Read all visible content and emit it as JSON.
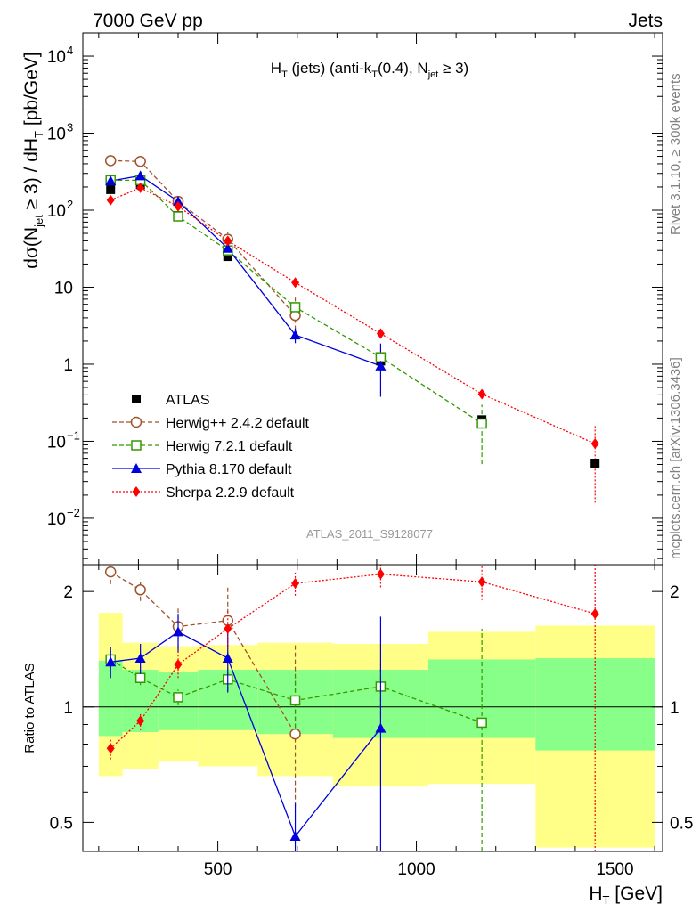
{
  "header": {
    "left": "7000 GeV pp",
    "right": "Jets"
  },
  "side_text": {
    "upper": "Rivet 3.1.10, ≥ 300k events",
    "lower": "mcplots.cern.ch [arXiv:1306.3436]"
  },
  "title": {
    "main": "H",
    "sub_t": "T",
    "mid": " (jets) (anti-k",
    "sub_t2": "T",
    "after": "(0.4), N",
    "sub_jet": "jet",
    "end": " ≥ 3)"
  },
  "ylabel_top": {
    "a": "dσ(N",
    "sub_jet": "jet",
    "b": " ≥ 3) / dH",
    "sub_t": "T",
    "c": " [pb/GeV]"
  },
  "ylabel_ratio": "Ratio to ATLAS",
  "xlabel": {
    "a": "H",
    "sub_t": "T",
    "b": " [GeV]"
  },
  "analysis_id": "ATLAS_2011_S9128077",
  "colors": {
    "atlas": "#000000",
    "herwigpp": "#a0522d",
    "herwig7": "#339900",
    "pythia": "#0000dd",
    "sherpa": "#ff0000",
    "band_outer": "#ffff88",
    "band_inner": "#88ff88"
  },
  "chart_data": {
    "type": "scatter",
    "x_label": "H_T [GeV]",
    "y_label": "dσ(N_jet ≥ 3) / dH_T [pb/GeV]",
    "y_scale": "log",
    "xlim": [
      160,
      1620
    ],
    "ylim_main": [
      0.0025,
      20000
    ],
    "ylim_ratio": [
      0.42,
      2.35
    ],
    "x_ticks": [
      500,
      1000,
      1500
    ],
    "x_tick_labels": [
      "500",
      "1000",
      "1500"
    ],
    "y_ticks_main": [
      0.01,
      0.1,
      1,
      10,
      100,
      1000,
      10000
    ],
    "y_tick_labels_main": [
      {
        "base": "10",
        "exp": "−2"
      },
      {
        "base": "10",
        "exp": "−1"
      },
      {
        "base": "1",
        "exp": ""
      },
      {
        "base": "10",
        "exp": ""
      },
      {
        "base": "10",
        "exp": "2"
      },
      {
        "base": "10",
        "exp": "3"
      },
      {
        "base": "10",
        "exp": "4"
      }
    ],
    "y_ticks_ratio": [
      0.5,
      1,
      2
    ],
    "y_tick_labels_ratio": [
      "0.5",
      "1",
      "2"
    ],
    "legend_position": "bottom-left",
    "bins": [
      {
        "lo": 200,
        "hi": 260
      },
      {
        "lo": 260,
        "hi": 350
      },
      {
        "lo": 350,
        "hi": 450
      },
      {
        "lo": 450,
        "hi": 600
      },
      {
        "lo": 600,
        "hi": 790
      },
      {
        "lo": 790,
        "hi": 1030
      },
      {
        "lo": 1030,
        "hi": 1300
      },
      {
        "lo": 1300,
        "hi": 1600
      }
    ],
    "atlas": {
      "name": "ATLAS",
      "x": [
        230,
        305,
        400,
        525,
        695,
        910,
        1165,
        1450
      ],
      "y": [
        185,
        215,
        85,
        25,
        5.2,
        1.1,
        0.19,
        0.052
      ],
      "band_inner": [
        [
          0.84,
          1.32
        ],
        [
          0.86,
          1.25
        ],
        [
          0.87,
          1.23
        ],
        [
          0.87,
          1.25
        ],
        [
          0.85,
          1.25
        ],
        [
          0.83,
          1.25
        ],
        [
          0.83,
          1.33
        ],
        [
          0.77,
          1.34
        ]
      ],
      "band_outer": [
        [
          0.66,
          1.76
        ],
        [
          0.69,
          1.47
        ],
        [
          0.72,
          1.44
        ],
        [
          0.7,
          1.45
        ],
        [
          0.66,
          1.47
        ],
        [
          0.62,
          1.46
        ],
        [
          0.63,
          1.57
        ],
        [
          0.43,
          1.63
        ]
      ]
    },
    "series": [
      {
        "name": "Herwig++ 2.4.2 default",
        "key": "herwigpp",
        "marker": "open-circle",
        "line": "dashed",
        "x": [
          230,
          305,
          400,
          525,
          695
        ],
        "y": [
          440,
          430,
          130,
          42,
          4.3
        ],
        "ratio": [
          2.25,
          2.02,
          1.62,
          1.68,
          0.85
        ],
        "ratio_err": [
          [
            2.09,
            2.41
          ],
          [
            1.89,
            2.15
          ],
          [
            1.42,
            1.82
          ],
          [
            1.3,
            2.06
          ],
          [
            0.55,
            1.45
          ]
        ]
      },
      {
        "name": "Herwig 7.2.1 default",
        "key": "herwig7",
        "marker": "open-square",
        "line": "dashed",
        "x": [
          230,
          305,
          400,
          525,
          695,
          910,
          1165
        ],
        "y": [
          245,
          245,
          83,
          30,
          5.5,
          1.23,
          0.17
        ],
        "ratio": [
          1.33,
          1.19,
          1.06,
          1.18,
          1.04,
          1.13,
          0.91
        ],
        "ratio_err": [
          [
            1.25,
            1.41
          ],
          [
            1.14,
            1.24
          ],
          [
            1.01,
            1.11
          ],
          [
            1.1,
            1.26
          ],
          [
            0.88,
            1.2
          ],
          [
            0.95,
            1.3
          ],
          [
            0.27,
            1.6
          ]
        ]
      },
      {
        "name": "Pythia 8.170 default",
        "key": "pythia",
        "marker": "filled-triangle",
        "line": "solid",
        "x": [
          230,
          305,
          400,
          525,
          695,
          910
        ],
        "y": [
          240,
          280,
          130,
          32,
          2.4,
          0.95
        ],
        "ratio": [
          1.31,
          1.34,
          1.57,
          1.34,
          0.46,
          0.88
        ],
        "ratio_err": [
          [
            1.19,
            1.43
          ],
          [
            1.22,
            1.46
          ],
          [
            1.39,
            1.75
          ],
          [
            1.09,
            1.58
          ],
          [
            0.36,
            0.56
          ],
          [
            0.35,
            1.72
          ]
        ]
      },
      {
        "name": "Sherpa 2.2.9 default",
        "key": "sherpa",
        "marker": "filled-diamond",
        "line": "dotted",
        "x": [
          230,
          305,
          400,
          525,
          695,
          910,
          1165,
          1450
        ],
        "y": [
          135,
          195,
          112,
          40,
          11.5,
          2.5,
          0.41,
          0.093
        ],
        "ratio": [
          0.78,
          0.92,
          1.29,
          1.6,
          2.1,
          2.22,
          2.12,
          1.75
        ],
        "ratio_err": [
          [
            0.73,
            0.83
          ],
          [
            0.87,
            0.97
          ],
          [
            1.19,
            1.39
          ],
          [
            1.42,
            1.78
          ],
          [
            1.95,
            2.25
          ],
          [
            2.05,
            2.35
          ],
          [
            1.9,
            2.35
          ],
          [
            0.3,
            3.0
          ]
        ]
      }
    ]
  }
}
